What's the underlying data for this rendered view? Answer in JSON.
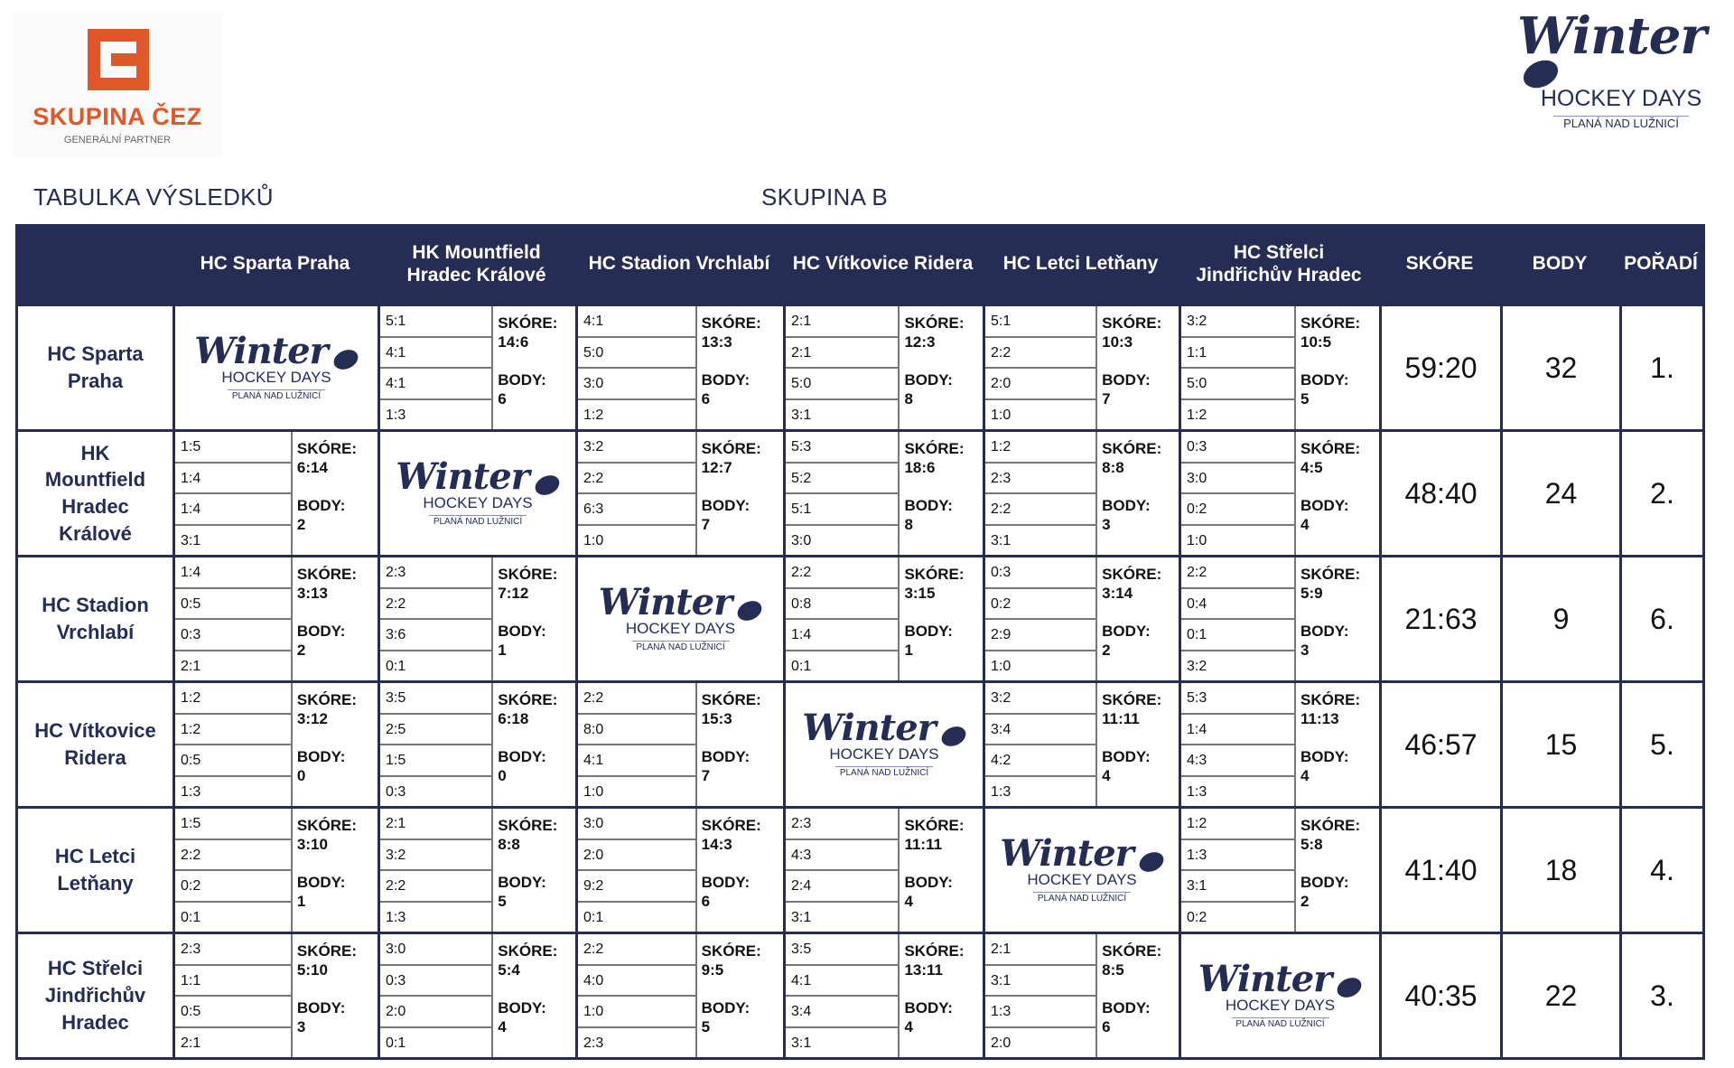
{
  "sponsor": {
    "name": "SKUPINA ČEZ",
    "subtitle": "GENERÁLNÍ PARTNER",
    "color": "#e0572a"
  },
  "event_logo": {
    "word": "Winter",
    "line1": "HOCKEY DAYS",
    "line2": "PLANÁ NAD LUŽNICÍ",
    "color": "#262d55"
  },
  "page": {
    "title": "TABULKA VÝSLEDKŮ",
    "group": "SKUPINA B"
  },
  "table": {
    "headers": [
      "",
      "HC Sparta Praha",
      "HK Mountfield Hradec Králové",
      "HC Stadion Vrchlabí",
      "HC Vítkovice Ridera",
      "HC Letci Letňany",
      "HC Střelci Jindřichův Hradec",
      "SKÓRE",
      "BODY",
      "POŘADÍ"
    ],
    "skore_label": "SKÓRE:",
    "body_label": "BODY:",
    "rows": [
      {
        "team": "HC Sparta Praha",
        "cells": [
          {
            "logo": true
          },
          {
            "games": [
              "5:1",
              "4:1",
              "4:1",
              "1:3"
            ],
            "skore": "14:6",
            "body": "6"
          },
          {
            "games": [
              "4:1",
              "5:0",
              "3:0",
              "1:2"
            ],
            "skore": "13:3",
            "body": "6"
          },
          {
            "games": [
              "2:1",
              "2:1",
              "5:0",
              "3:1"
            ],
            "skore": "12:3",
            "body": "8"
          },
          {
            "games": [
              "5:1",
              "2:2",
              "2:0",
              "1:0"
            ],
            "skore": "10:3",
            "body": "7"
          },
          {
            "games": [
              "3:2",
              "1:1",
              "5:0",
              "1:2"
            ],
            "skore": "10:5",
            "body": "5"
          }
        ],
        "skore": "59:20",
        "body": "32",
        "poradi": "1."
      },
      {
        "team": "HK Mountfield Hradec Králové",
        "cells": [
          {
            "games": [
              "1:5",
              "1:4",
              "1:4",
              "3:1"
            ],
            "skore": "6:14",
            "body": "2"
          },
          {
            "logo": true
          },
          {
            "games": [
              "3:2",
              "2:2",
              "6:3",
              "1:0"
            ],
            "skore": "12:7",
            "body": "7"
          },
          {
            "games": [
              "5:3",
              "5:2",
              "5:1",
              "3:0"
            ],
            "skore": "18:6",
            "body": "8"
          },
          {
            "games": [
              "1:2",
              "2:3",
              "2:2",
              "3:1"
            ],
            "skore": "8:8",
            "body": "3"
          },
          {
            "games": [
              "0:3",
              "3:0",
              "0:2",
              "1:0"
            ],
            "skore": "4:5",
            "body": "4"
          }
        ],
        "skore": "48:40",
        "body": "24",
        "poradi": "2."
      },
      {
        "team": "HC Stadion Vrchlabí",
        "cells": [
          {
            "games": [
              "1:4",
              "0:5",
              "0:3",
              "2:1"
            ],
            "skore": "3:13",
            "body": "2"
          },
          {
            "games": [
              "2:3",
              "2:2",
              "3:6",
              "0:1"
            ],
            "skore": "7:12",
            "body": "1"
          },
          {
            "logo": true
          },
          {
            "games": [
              "2:2",
              "0:8",
              "1:4",
              "0:1"
            ],
            "skore": "3:15",
            "body": "1"
          },
          {
            "games": [
              "0:3",
              "0:2",
              "2:9",
              "1:0"
            ],
            "skore": "3:14",
            "body": "2"
          },
          {
            "games": [
              "2:2",
              "0:4",
              "0:1",
              "3:2"
            ],
            "skore": "5:9",
            "body": "3"
          }
        ],
        "skore": "21:63",
        "body": "9",
        "poradi": "6."
      },
      {
        "team": "HC Vítkovice Ridera",
        "cells": [
          {
            "games": [
              "1:2",
              "1:2",
              "0:5",
              "1:3"
            ],
            "skore": "3:12",
            "body": "0"
          },
          {
            "games": [
              "3:5",
              "2:5",
              "1:5",
              "0:3"
            ],
            "skore": "6:18",
            "body": "0"
          },
          {
            "games": [
              "2:2",
              "8:0",
              "4:1",
              "1:0"
            ],
            "skore": "15:3",
            "body": "7"
          },
          {
            "logo": true
          },
          {
            "games": [
              "3:2",
              "3:4",
              "4:2",
              "1:3"
            ],
            "skore": "11:11",
            "body": "4"
          },
          {
            "games": [
              "5:3",
              "1:4",
              "4:3",
              "1:3"
            ],
            "skore": "11:13",
            "body": "4"
          }
        ],
        "skore": "46:57",
        "body": "15",
        "poradi": "5."
      },
      {
        "team": "HC Letci Letňany",
        "cells": [
          {
            "games": [
              "1:5",
              "2:2",
              "0:2",
              "0:1"
            ],
            "skore": "3:10",
            "body": "1"
          },
          {
            "games": [
              "2:1",
              "3:2",
              "2:2",
              "1:3"
            ],
            "skore": "8:8",
            "body": "5"
          },
          {
            "games": [
              "3:0",
              "2:0",
              "9:2",
              "0:1"
            ],
            "skore": "14:3",
            "body": "6"
          },
          {
            "games": [
              "2:3",
              "4:3",
              "2:4",
              "3:1"
            ],
            "skore": "11:11",
            "body": "4"
          },
          {
            "logo": true
          },
          {
            "games": [
              "1:2",
              "1:3",
              "3:1",
              "0:2"
            ],
            "skore": "5:8",
            "body": "2"
          }
        ],
        "skore": "41:40",
        "body": "18",
        "poradi": "4."
      },
      {
        "team": "HC Střelci Jindřichův Hradec",
        "cells": [
          {
            "games": [
              "2:3",
              "1:1",
              "0:5",
              "2:1"
            ],
            "skore": "5:10",
            "body": "3"
          },
          {
            "games": [
              "3:0",
              "0:3",
              "2:0",
              "0:1"
            ],
            "skore": "5:4",
            "body": "4"
          },
          {
            "games": [
              "2:2",
              "4:0",
              "1:0",
              "2:3"
            ],
            "skore": "9:5",
            "body": "5"
          },
          {
            "games": [
              "3:5",
              "4:1",
              "3:4",
              "3:1"
            ],
            "skore": "13:11",
            "body": "4"
          },
          {
            "games": [
              "2:1",
              "3:1",
              "1:3",
              "2:0"
            ],
            "skore": "8:5",
            "body": "6"
          },
          {
            "logo": true
          }
        ],
        "skore": "40:35",
        "body": "22",
        "poradi": "3."
      }
    ]
  }
}
